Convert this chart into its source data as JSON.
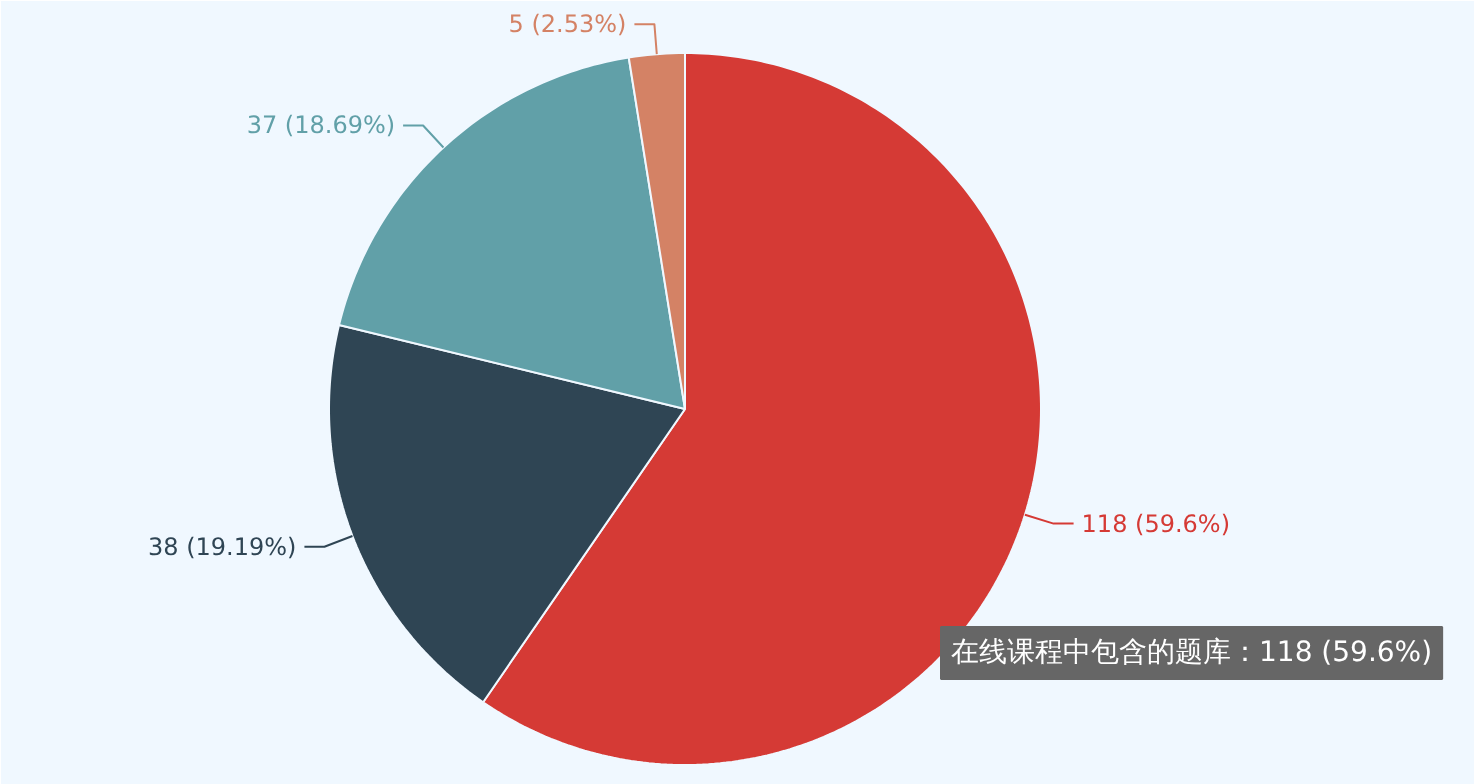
{
  "chart_data": {
    "type": "pie",
    "categories": [
      null,
      null,
      null,
      null
    ],
    "values": [
      118,
      38,
      37,
      5
    ],
    "colors": [
      "#d53a35",
      "#2f4554",
      "#61a0a8",
      "#d48265"
    ],
    "value_labels": [
      "118 (59.6%)",
      "38 (19.19%)",
      "37 (18.69%)",
      "5 (2.53%)"
    ],
    "annotations": [
      "在线课程中包含的题库：118 (59.6%)"
    ],
    "legend": false
  }
}
